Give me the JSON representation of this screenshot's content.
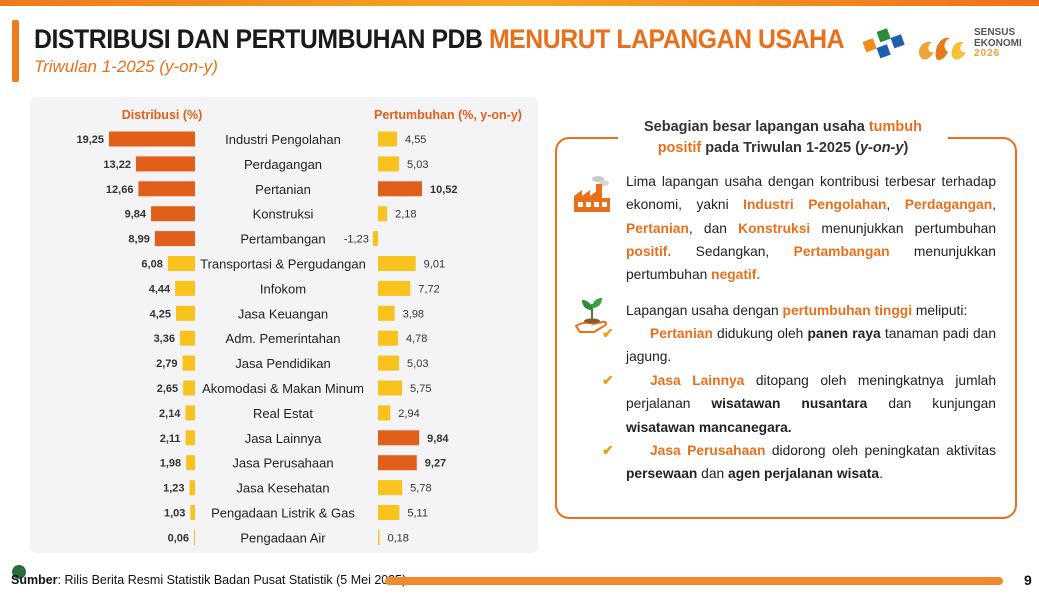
{
  "header": {
    "title_main": "DISTRIBUSI DAN PERTUMBUHAN PDB ",
    "title_accent": "MENURUT LAPANGAN USAHA",
    "subtitle": "Triwulan 1-2025 (y-on-y)",
    "logo_line1": "SENSUS",
    "logo_line2": "EKONOMI",
    "logo_line3": "2026"
  },
  "chart_data": {
    "type": "bar",
    "left_header": "Distribusi (%)",
    "right_header": "Pertumbuhan (%, y-on-y)",
    "categories": [
      "Industri Pengolahan",
      "Perdagangan",
      "Pertanian",
      "Konstruksi",
      "Pertambangan",
      "Transportasi & Pergudangan",
      "Infokom",
      "Jasa Keuangan",
      "Adm. Pemerintahan",
      "Jasa Pendidikan",
      "Akomodasi & Makan Minum",
      "Real Estat",
      "Jasa Lainnya",
      "Jasa Perusahaan",
      "Jasa Kesehatan",
      "Pengadaan Listrik & Gas",
      "Pengadaan Air"
    ],
    "series": [
      {
        "name": "Distribusi (%)",
        "values": [
          19.25,
          13.22,
          12.66,
          9.84,
          8.99,
          6.08,
          4.44,
          4.25,
          3.36,
          2.79,
          2.65,
          2.14,
          2.11,
          1.98,
          1.23,
          1.03,
          0.06
        ],
        "labels": [
          "19,25",
          "13,22",
          "12,66",
          "9,84",
          "8,99",
          "6,08",
          "4,44",
          "4,25",
          "3,36",
          "2,79",
          "2,65",
          "2,14",
          "2,11",
          "1,98",
          "1,23",
          "1,03",
          "0,06"
        ]
      },
      {
        "name": "Pertumbuhan (%, y-on-y)",
        "values": [
          4.55,
          5.03,
          10.52,
          2.18,
          -1.23,
          9.01,
          7.72,
          3.98,
          4.78,
          5.03,
          5.75,
          2.94,
          9.84,
          9.27,
          5.78,
          5.11,
          0.18
        ],
        "labels": [
          "4,55",
          "5,03",
          "10,52",
          "2,18",
          "-1,23",
          "9,01",
          "7,72",
          "3,98",
          "4,78",
          "5,03",
          "5,75",
          "2,94",
          "9,84",
          "9,27",
          "5,78",
          "5,11",
          "0,18"
        ]
      }
    ],
    "highlight_top_distribusi": 5,
    "highlight_growth": [
      "Pertanian",
      "Jasa Lainnya",
      "Jasa Perusahaan"
    ],
    "colors": {
      "highlight": "#e0601a",
      "normal": "#f7c31c"
    }
  },
  "info": {
    "header_pre": "Sebagian besar lapangan usaha ",
    "header_hl1": "tumbuh",
    "header_hl2": "positif",
    "header_post": " pada Triwulan 1-2025 (",
    "header_italic": "y-on-y",
    "header_end": ")",
    "p1_a": "Lima lapangan usaha dengan kontribusi terbesar terhadap ekonomi, yakni ",
    "p1_b": "Industri Pengolahan",
    "p1_c": ", ",
    "p1_d": "Perdagangan",
    "p1_e": ", ",
    "p1_f": "Pertanian",
    "p1_g": ", dan ",
    "p1_h": "Konstruksi",
    "p1_i": " menunjukkan pertumbuhan ",
    "p1_j": "positif.",
    "p1_k": " Sedangkan, ",
    "p1_l": "Pertambangan",
    "p1_m": " menunjukkan pertumbuhan ",
    "p1_n": "negatif.",
    "p2_a": "Lapangan usaha dengan ",
    "p2_b": "pertumbuhan tinggi",
    "p2_c": " meliputi:",
    "b1_a": "Pertanian",
    "b1_b": " didukung oleh ",
    "b1_c": "panen raya",
    "b1_d": " tanaman padi dan jagung.",
    "b2_a": "Jasa Lainnya",
    "b2_b": " ditopang oleh meningkatnya jumlah perjalanan ",
    "b2_c": "wisatawan nusantara",
    "b2_d": " dan kunjungan ",
    "b2_e": "wisatawan mancanegara.",
    "b3_a": "Jasa Perusahaan",
    "b3_b": " didorong oleh peningkatan aktivitas ",
    "b3_c": "persewaan",
    "b3_d": " dan ",
    "b3_e": "agen perjalanan wisata",
    "b3_f": ".",
    "check": "✔"
  },
  "footer": {
    "source_bold": "Sumber",
    "source_rest": ": Rilis Berita Resmi Statistik Badan Pusat Statistik (5 Mei 2025)",
    "page": "9"
  }
}
